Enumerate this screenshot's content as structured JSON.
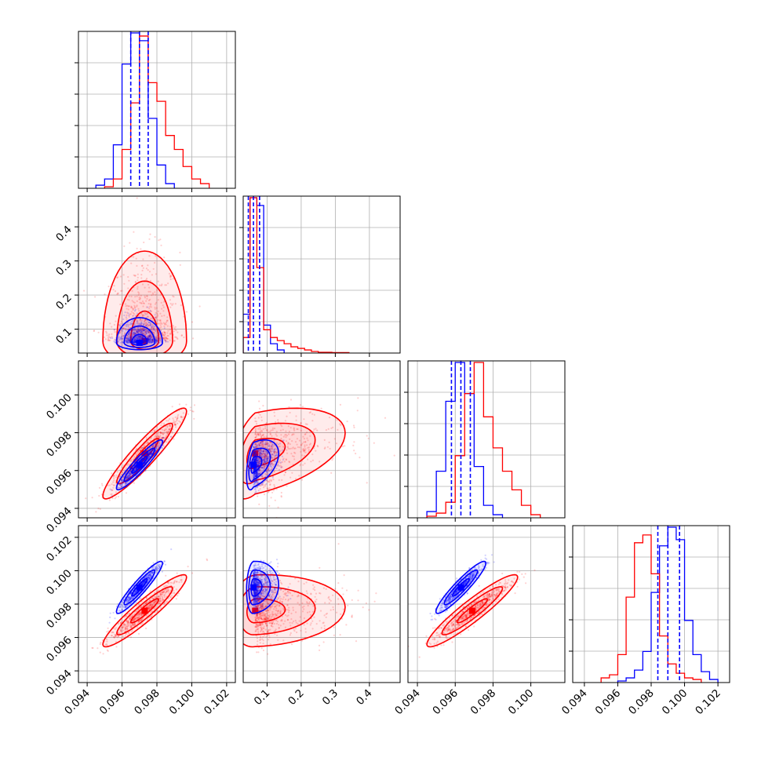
{
  "chart_data": {
    "type": "corner",
    "title": "",
    "grid": true,
    "colors": {
      "series_a": "#0000ff",
      "series_b": "#ff0000"
    },
    "parameters": [
      {
        "range": [
          0.0935,
          0.1025
        ],
        "ticks": [
          0.094,
          0.096,
          0.098,
          0.1,
          0.102
        ],
        "labels": [
          "0.094",
          "0.096",
          "0.098",
          "0.100",
          "0.102"
        ]
      },
      {
        "range": [
          0.03,
          0.49
        ],
        "ticks": [
          0.1,
          0.2,
          0.3,
          0.4
        ],
        "labels": [
          "0.1",
          "0.2",
          "0.3",
          "0.4"
        ]
      },
      {
        "range": [
          0.0935,
          0.1018
        ],
        "ticks": [
          0.094,
          0.096,
          0.098,
          0.1
        ],
        "labels": [
          "0.094",
          "0.096",
          "0.098",
          "0.100"
        ]
      },
      {
        "range": [
          0.0933,
          0.1027
        ],
        "ticks": [
          0.094,
          0.096,
          0.098,
          0.1,
          0.102
        ],
        "labels": [
          "0.094",
          "0.096",
          "0.098",
          "0.100",
          "0.102"
        ]
      }
    ],
    "series": [
      {
        "color": "#0000ff",
        "medians": [
          0.097,
          0.06,
          0.0963,
          0.099
        ],
        "quantiles": [
          [
            0.0965,
            0.0975
          ],
          [
            0.045,
            0.078
          ],
          [
            0.0958,
            0.0968
          ],
          [
            0.0984,
            0.0997
          ]
        ],
        "spreads": [
          0.00055,
          0.014,
          0.00055,
          0.00065
        ],
        "histograms": [
          {
            "bins": [
              0.0945,
              0.095,
              0.0955,
              0.096,
              0.0965,
              0.097,
              0.0975,
              0.098,
              0.0985,
              0.099
            ],
            "counts": [
              0.02,
              0.06,
              0.28,
              0.8,
              1.0,
              0.95,
              0.45,
              0.15,
              0.03
            ]
          },
          {
            "bins": [
              0.03,
              0.05,
              0.07,
              0.09,
              0.11,
              0.13,
              0.15
            ],
            "counts": [
              0.25,
              1.0,
              0.95,
              0.18,
              0.06,
              0.02
            ]
          },
          {
            "bins": [
              0.0945,
              0.095,
              0.0955,
              0.096,
              0.0965,
              0.097,
              0.0975,
              0.098,
              0.0985
            ],
            "counts": [
              0.04,
              0.3,
              0.75,
              1.0,
              0.8,
              0.33,
              0.08,
              0.02
            ]
          },
          {
            "bins": [
              0.096,
              0.0965,
              0.097,
              0.0975,
              0.098,
              0.0985,
              0.099,
              0.0995,
              0.1,
              0.1005,
              0.101,
              0.1015,
              0.102
            ],
            "counts": [
              0.01,
              0.03,
              0.08,
              0.2,
              0.58,
              0.88,
              1.0,
              0.92,
              0.4,
              0.18,
              0.07,
              0.02
            ]
          }
        ]
      },
      {
        "color": "#ff0000",
        "medians": [
          0.0973,
          0.065,
          0.0969,
          0.0976
        ],
        "quantiles": [
          [
            0.0968,
            0.098
          ],
          [
            0.05,
            0.11
          ],
          [
            0.0963,
            0.0976
          ],
          [
            0.097,
            0.0983
          ]
        ],
        "spreads": [
          0.001,
          0.05,
          0.001,
          0.0009
        ],
        "histograms": [
          {
            "bins": [
              0.095,
              0.0955,
              0.096,
              0.0965,
              0.097,
              0.0975,
              0.098,
              0.0985,
              0.099,
              0.0995,
              0.1,
              0.1005,
              0.101
            ],
            "counts": [
              0.01,
              0.06,
              0.25,
              0.55,
              0.98,
              0.68,
              0.56,
              0.34,
              0.25,
              0.14,
              0.06,
              0.03
            ]
          },
          {
            "bins": [
              0.03,
              0.05,
              0.07,
              0.09,
              0.11,
              0.13,
              0.15,
              0.17,
              0.19,
              0.21,
              0.23,
              0.25,
              0.29,
              0.34
            ],
            "counts": [
              0.1,
              1.0,
              0.55,
              0.15,
              0.1,
              0.08,
              0.06,
              0.04,
              0.03,
              0.02,
              0.01,
              0.005,
              0.003
            ]
          },
          {
            "bins": [
              0.0945,
              0.095,
              0.0955,
              0.096,
              0.0965,
              0.097,
              0.0975,
              0.098,
              0.0985,
              0.099,
              0.0995,
              0.1,
              0.1005
            ],
            "counts": [
              0.01,
              0.03,
              0.1,
              0.4,
              0.8,
              1.0,
              0.65,
              0.45,
              0.3,
              0.18,
              0.08,
              0.02
            ]
          },
          {
            "bins": [
              0.095,
              0.0955,
              0.096,
              0.0965,
              0.097,
              0.0975,
              0.098,
              0.0985,
              0.099,
              0.0995,
              0.1,
              0.1005,
              0.101
            ],
            "counts": [
              0.03,
              0.05,
              0.18,
              0.55,
              0.9,
              0.95,
              0.7,
              0.3,
              0.12,
              0.06,
              0.03,
              0.02
            ]
          }
        ]
      }
    ]
  }
}
